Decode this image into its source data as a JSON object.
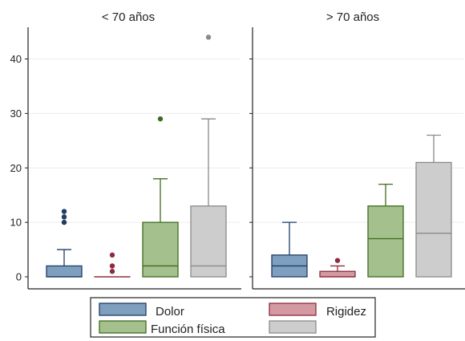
{
  "chart_data": {
    "type": "box",
    "panels": [
      {
        "title": "< 70 años",
        "boxes": [
          {
            "series": "Dolor",
            "min": 0,
            "q1": 0,
            "median": 0,
            "q3": 2,
            "max": 5,
            "outliers": [
              10,
              11,
              12
            ]
          },
          {
            "series": "Rigidez",
            "min": 0,
            "q1": 0,
            "median": 0,
            "q3": 0,
            "max": 0,
            "outliers": [
              1,
              2,
              4
            ]
          },
          {
            "series": "Función física",
            "min": 0,
            "q1": 0,
            "median": 2,
            "q3": 10,
            "max": 18,
            "outliers": [
              29
            ]
          },
          {
            "series": "",
            "min": 0,
            "q1": 0,
            "median": 2,
            "q3": 13,
            "max": 29,
            "outliers": [
              44
            ]
          }
        ]
      },
      {
        "title": "> 70 años",
        "boxes": [
          {
            "series": "Dolor",
            "min": 0,
            "q1": 0,
            "median": 2,
            "q3": 4,
            "max": 10,
            "outliers": []
          },
          {
            "series": "Rigidez",
            "min": 0,
            "q1": 0,
            "median": 0,
            "q3": 1,
            "max": 2,
            "outliers": [
              3
            ]
          },
          {
            "series": "Función física",
            "min": 0,
            "q1": 0,
            "median": 7,
            "q3": 13,
            "max": 17,
            "outliers": []
          },
          {
            "series": "",
            "min": 0,
            "q1": 0,
            "median": 8,
            "q3": 21,
            "max": 26,
            "outliers": []
          }
        ]
      }
    ],
    "y_ticks": [
      0,
      10,
      20,
      30,
      40
    ],
    "ylim": [
      0,
      46
    ],
    "legend": [
      {
        "label": "Dolor",
        "fill": "#7f9fbf",
        "stroke": "#1f3d66"
      },
      {
        "label": "Rigidez",
        "fill": "#d49aa2",
        "stroke": "#8c2c3c"
      },
      {
        "label": "Función física",
        "fill": "#a4c08c",
        "stroke": "#3f6b1f"
      },
      {
        "label": "",
        "fill": "#cdcdcd",
        "stroke": "#8a8a8a"
      }
    ],
    "grid": true
  }
}
